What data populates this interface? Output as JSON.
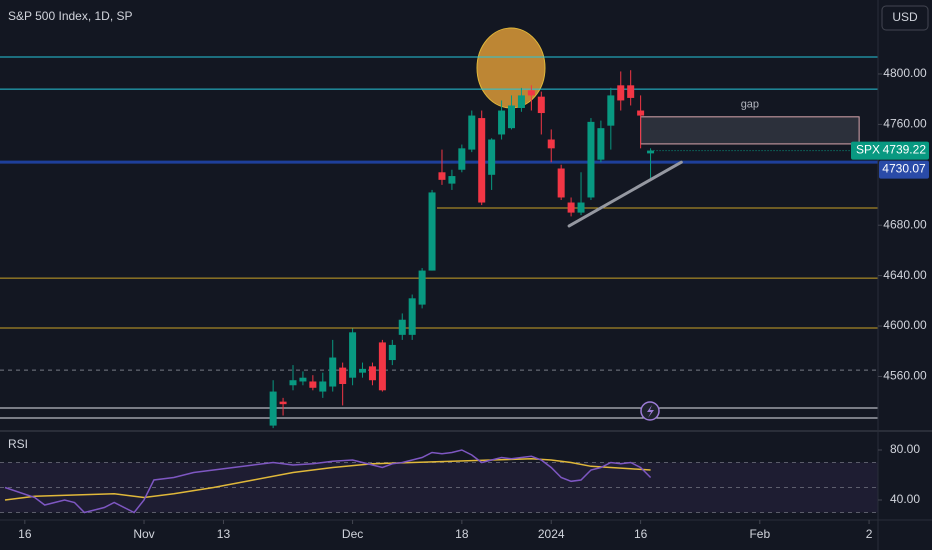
{
  "header": {
    "title": "S&P 500 Index, 1D, SP",
    "currency": "USD"
  },
  "chart_data": {
    "type": "candlestick",
    "symbol": "SPX",
    "up_color": "#089981",
    "down_color": "#f23645",
    "x": [
      0,
      1,
      2,
      3,
      4,
      5,
      6,
      7,
      8,
      9,
      10,
      11,
      12,
      13,
      14,
      15,
      16,
      17,
      18,
      19,
      20,
      21,
      22,
      23,
      24,
      25,
      26,
      27,
      28,
      29,
      30,
      31,
      32,
      33,
      34,
      35,
      36,
      37,
      38
    ],
    "open": [
      4521,
      4540,
      4553,
      4556,
      4556,
      4548,
      4552,
      4567,
      4559,
      4563,
      4568,
      4587,
      4573,
      4593,
      4593,
      4617,
      4644,
      4722,
      4713,
      4724,
      4740,
      4765,
      4720,
      4752,
      4757,
      4773,
      4787,
      4782,
      4748,
      4725,
      4698,
      4690,
      4702,
      4732,
      4759,
      4791,
      4791,
      4771,
      4737
    ],
    "high": [
      4557,
      4543,
      4569,
      4564,
      4561,
      4563,
      4589,
      4571,
      4598,
      4571,
      4571,
      4589,
      4589,
      4610,
      4625,
      4646,
      4708,
      4740,
      4724,
      4744,
      4771,
      4771,
      4749,
      4779,
      4783,
      4789,
      4791,
      4786,
      4756,
      4728,
      4702,
      4722,
      4765,
      4763,
      4789,
      4802,
      4803,
      4783,
      4741
    ],
    "low": [
      4519,
      4529,
      4549,
      4553,
      4549,
      4543,
      4548,
      4537,
      4553,
      4559,
      4553,
      4548,
      4569,
      4589,
      4589,
      4614,
      4644,
      4712,
      4708,
      4722,
      4738,
      4696,
      4708,
      4748,
      4756,
      4770,
      4771,
      4752,
      4730,
      4700,
      4687,
      4688,
      4700,
      4730,
      4740,
      4771,
      4775,
      4741,
      4717
    ],
    "close": [
      4548,
      4538,
      4557,
      4559,
      4551,
      4556,
      4575,
      4554,
      4595,
      4566,
      4557,
      4549,
      4585,
      4605,
      4622,
      4644,
      4706,
      4716,
      4719,
      4741,
      4767,
      4698,
      4748,
      4771,
      4775,
      4783,
      4783,
      4769,
      4741,
      4702,
      4690,
      4698,
      4762,
      4757,
      4783,
      4779,
      4781,
      4767,
      4739.22
    ],
    "xlim": [
      -27.5,
      60.9
    ],
    "xticks": [
      {
        "value": -25,
        "label": "16"
      },
      {
        "value": -13,
        "label": "Nov"
      },
      {
        "value": -5,
        "label": "13"
      },
      {
        "value": 8,
        "label": "Dec"
      },
      {
        "value": 19,
        "label": "18"
      },
      {
        "value": 28,
        "label": "2024"
      },
      {
        "value": 37,
        "label": "16"
      },
      {
        "value": 49,
        "label": "Feb"
      },
      {
        "value": 60,
        "label": "2"
      }
    ],
    "ylim": [
      4517.5,
      4858.7
    ],
    "yticks": [
      {
        "value": 4560,
        "label": "4560.00"
      },
      {
        "value": 4600,
        "label": "4600.00"
      },
      {
        "value": 4640,
        "label": "4640.00"
      },
      {
        "value": 4680,
        "label": "4680.00"
      },
      {
        "value": 4760,
        "label": "4760.00"
      },
      {
        "value": 4800,
        "label": "4800.00"
      }
    ],
    "hlines": [
      {
        "value": 4813.5,
        "color": "#26c6da"
      },
      {
        "value": 4788,
        "color": "#26c6da"
      },
      {
        "value": 4730.07,
        "color": "#1e3f9a"
      },
      {
        "value": 4693.7,
        "color": "#c9a227",
        "x_from": 16.5
      },
      {
        "value": 4638,
        "color": "#c9a227"
      },
      {
        "value": 4598.4,
        "color": "#c9a227"
      },
      {
        "value": 4565,
        "color": "#787b86",
        "dashed": true
      },
      {
        "value": 4535,
        "color": "#e0e3eb"
      },
      {
        "value": 4527,
        "color": "#e0e3eb"
      }
    ],
    "gap": {
      "label": "gap",
      "x": [
        37,
        59
      ],
      "y": [
        4744.5,
        4766
      ]
    },
    "trendline": {
      "x": [
        29.8,
        41.1
      ],
      "y": [
        4679.4,
        4730
      ]
    },
    "rsi": {
      "name": "RSI",
      "ylim": [
        24,
        94.4
      ],
      "yticks": [
        {
          "value": 80,
          "label": "80.00"
        },
        {
          "value": 40,
          "label": "40.00"
        }
      ],
      "bands": [
        70,
        50,
        30
      ],
      "color": "#7e57c2",
      "x": [
        -27,
        -24,
        -23,
        -21,
        -20,
        -19,
        -17,
        -16,
        -14,
        -13,
        -12,
        -10,
        -8,
        -6,
        -4,
        -2,
        0,
        2,
        4,
        6,
        8,
        9,
        10,
        11,
        12,
        13,
        14,
        15,
        16,
        17,
        18,
        19,
        20,
        21,
        22,
        23,
        24,
        25,
        26,
        27,
        28,
        29,
        30,
        31,
        32,
        33,
        34,
        35,
        36,
        37,
        38
      ],
      "values": [
        50,
        42,
        36,
        40,
        38,
        30,
        34,
        38,
        30,
        40,
        56,
        58,
        62,
        64,
        66,
        68,
        70,
        68,
        69,
        71,
        72,
        70,
        68,
        66,
        69,
        70,
        72,
        74,
        78,
        77,
        78,
        80,
        76,
        70,
        72,
        74,
        73,
        74,
        75,
        72,
        66,
        58,
        55,
        56,
        64,
        66,
        70,
        69,
        70,
        66,
        58
      ],
      "ma_color": "#e0b83a",
      "ma_x": [
        -27,
        -24,
        -20,
        -16,
        -14,
        -13,
        -10,
        -6,
        -2,
        2,
        6,
        10,
        14,
        18,
        22,
        26,
        28,
        30,
        32,
        34,
        36,
        38
      ],
      "ma_values": [
        40,
        43,
        44,
        45,
        43,
        42,
        45,
        50,
        56,
        62,
        66,
        69,
        70,
        71,
        72,
        73,
        72,
        70,
        67,
        66,
        65,
        64
      ]
    }
  }
}
